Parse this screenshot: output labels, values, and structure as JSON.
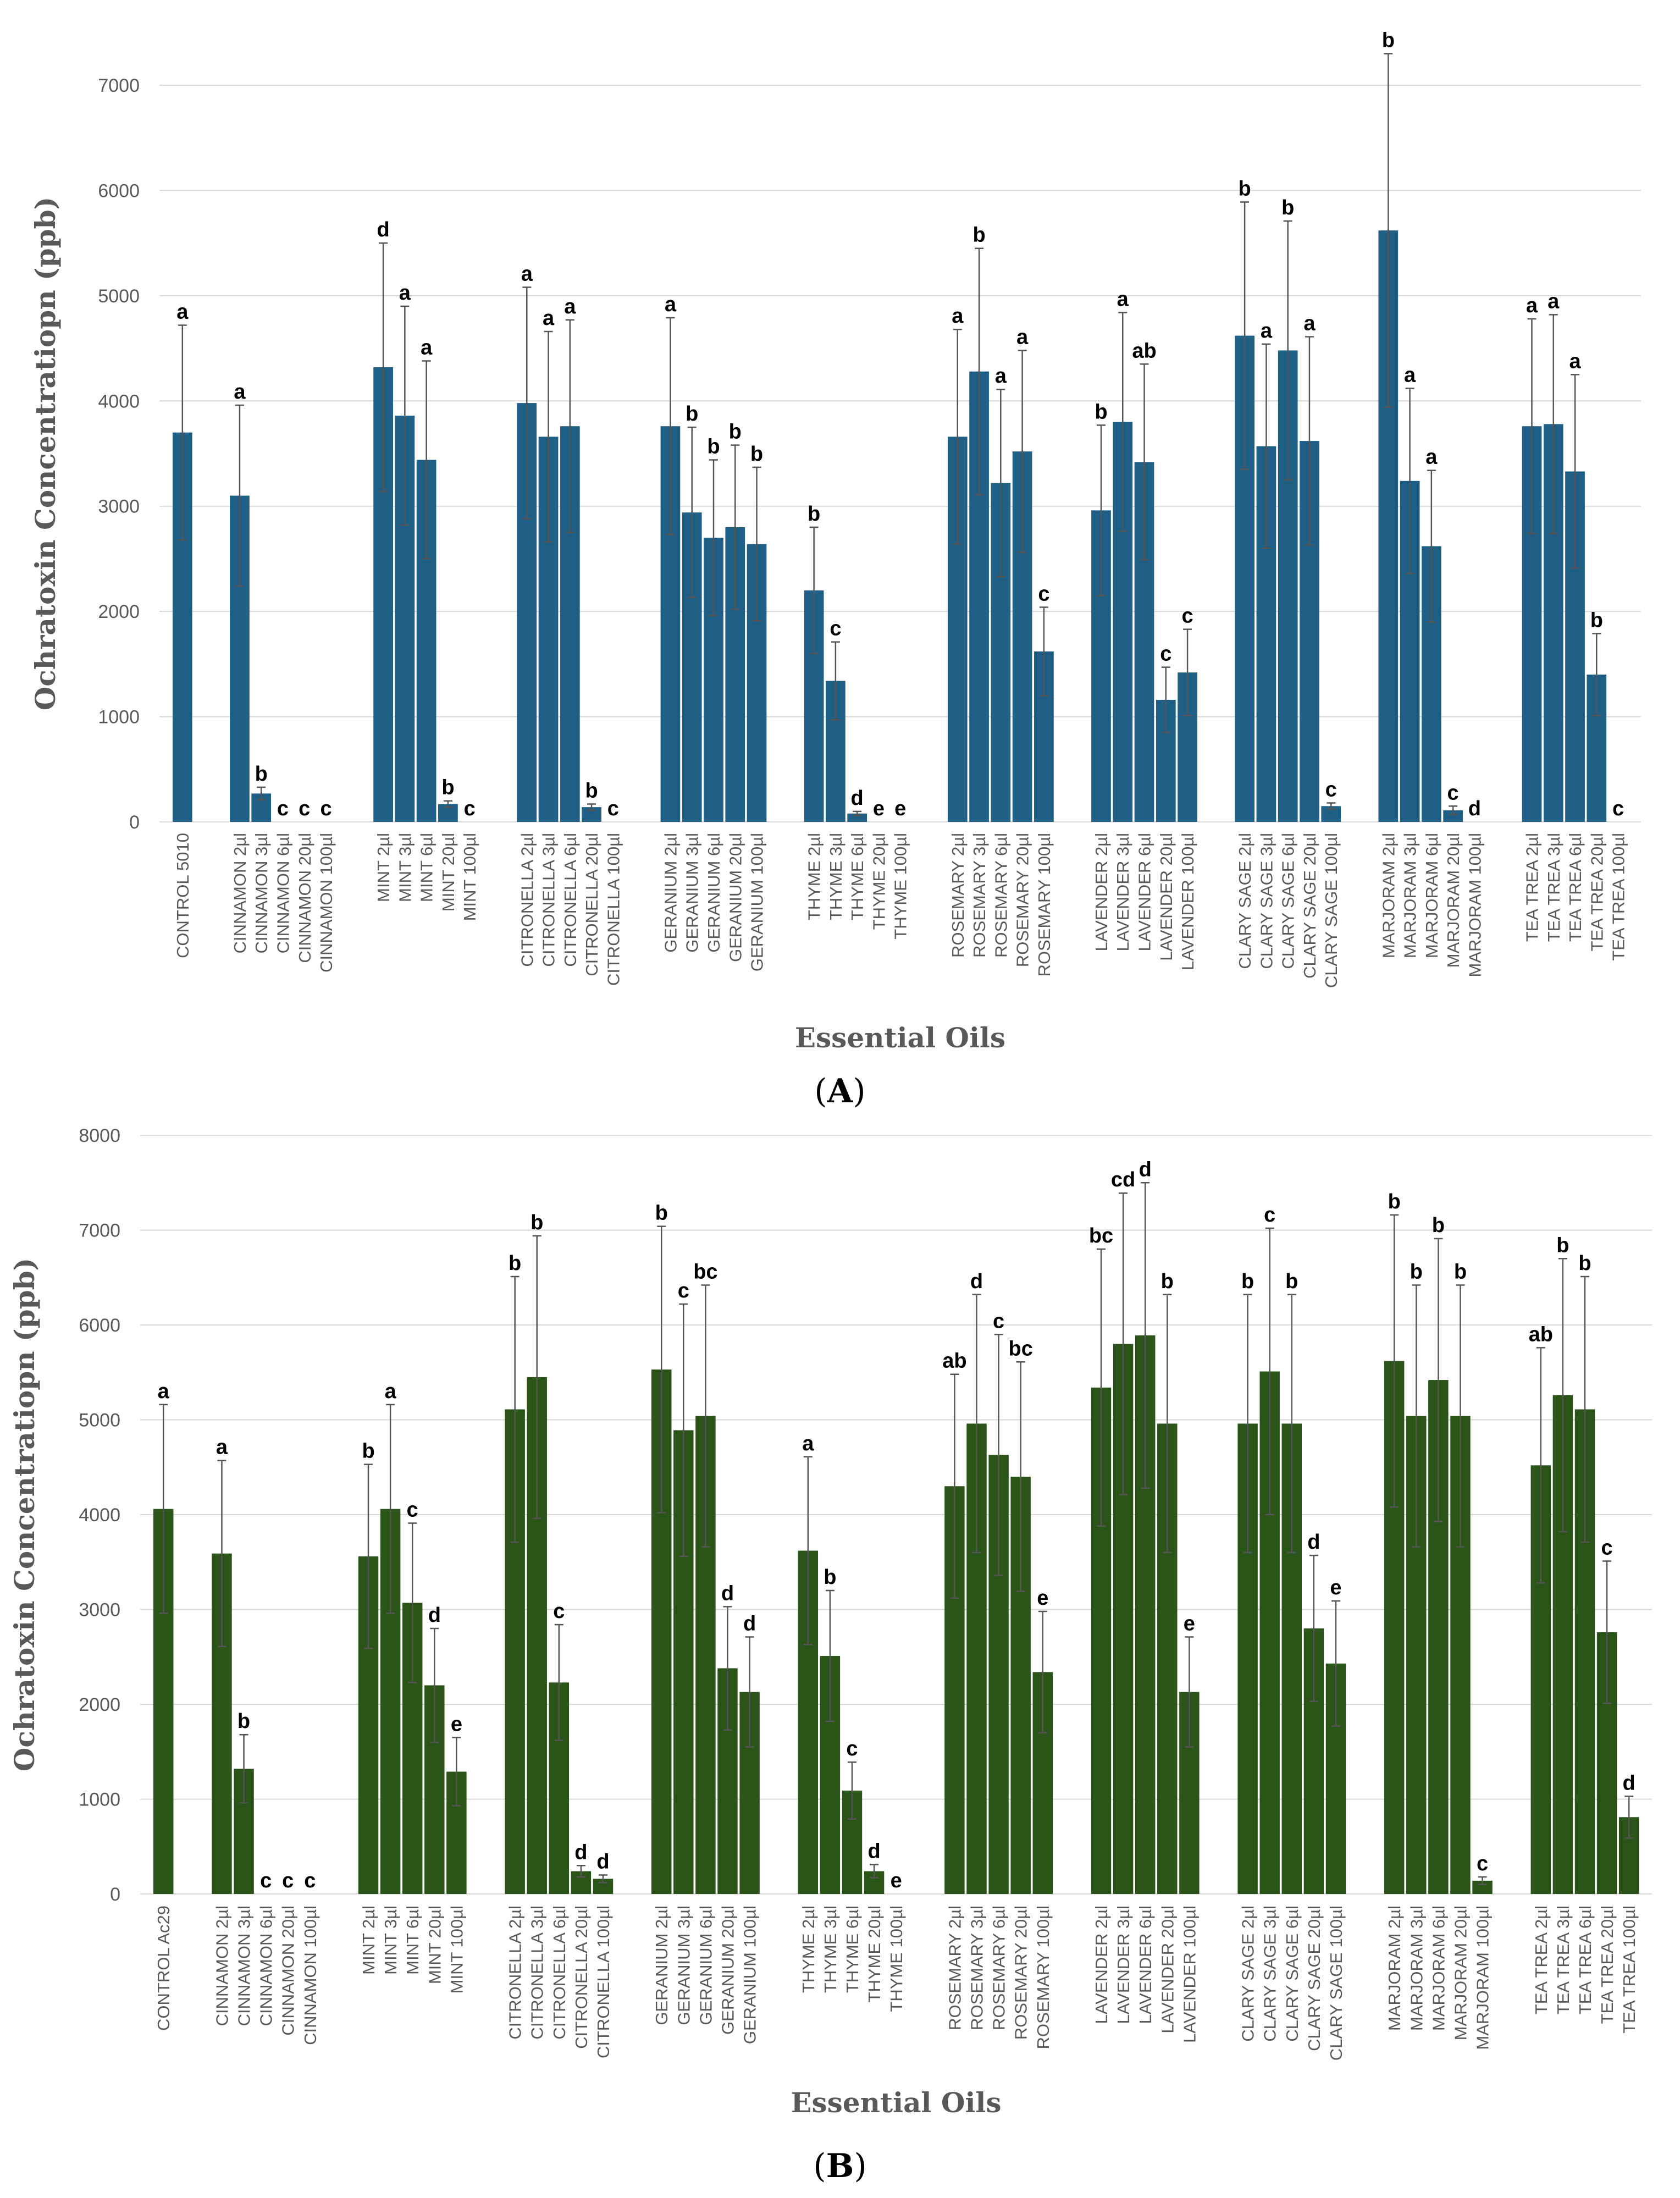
{
  "figure": {
    "label_A": "A",
    "label_B": "B"
  },
  "chart_data": [
    {
      "type": "bar",
      "panel": "A",
      "xlabel": "Essential Oils",
      "ylabel": "Ochratoxin Concentratiopn (ppb)",
      "ylim": [
        0,
        7000
      ],
      "yticks": [
        0,
        1000,
        2000,
        3000,
        4000,
        5000,
        6000,
        7000
      ],
      "grid": true,
      "bar_color": "#1f5f86",
      "groups": [
        {
          "name": "CONTROL",
          "bars": [
            {
              "label": "CONTROL 5010",
              "value": 3700,
              "error": 1020,
              "letter": "a"
            }
          ]
        },
        {
          "name": "CINNAMON",
          "bars": [
            {
              "label": "CINNAMON 2µl",
              "value": 3100,
              "error": 860,
              "letter": "a"
            },
            {
              "label": "CINNAMON 3µl",
              "value": 270,
              "error": 60,
              "letter": "b"
            },
            {
              "label": "CINNAMON 6µl",
              "value": 0,
              "error": 0,
              "letter": "c"
            },
            {
              "label": "CINNAMON 20µl",
              "value": 0,
              "error": 0,
              "letter": "c"
            },
            {
              "label": "CINNAMON 100µl",
              "value": 0,
              "error": 0,
              "letter": "c"
            }
          ]
        },
        {
          "name": "MINT",
          "bars": [
            {
              "label": "MINT 2µl",
              "value": 4320,
              "error": 1180,
              "letter": "d"
            },
            {
              "label": "MINT 3µl",
              "value": 3860,
              "error": 1040,
              "letter": "a"
            },
            {
              "label": "MINT 6µl",
              "value": 3440,
              "error": 940,
              "letter": "a"
            },
            {
              "label": "MINT 20µl",
              "value": 170,
              "error": 30,
              "letter": "b"
            },
            {
              "label": "MINT 100µl",
              "value": 0,
              "error": 0,
              "letter": "c"
            }
          ]
        },
        {
          "name": "CITRONELLA",
          "bars": [
            {
              "label": "CITRONELLA 2µl",
              "value": 3980,
              "error": 1100,
              "letter": "a"
            },
            {
              "label": "CITRONELLA 3µl",
              "value": 3660,
              "error": 1000,
              "letter": "a"
            },
            {
              "label": "CITRONELLA 6µl",
              "value": 3760,
              "error": 1010,
              "letter": "a"
            },
            {
              "label": "CITRONELLA 20µl",
              "value": 140,
              "error": 30,
              "letter": "b"
            },
            {
              "label": "CITRONELLA 100µl",
              "value": 0,
              "error": 0,
              "letter": "c"
            }
          ]
        },
        {
          "name": "GERANIUM",
          "bars": [
            {
              "label": "GERANIUM 2µl",
              "value": 3760,
              "error": 1030,
              "letter": "a"
            },
            {
              "label": "GERANIUM 3µl",
              "value": 2940,
              "error": 810,
              "letter": "b"
            },
            {
              "label": "GERANIUM 6µl",
              "value": 2700,
              "error": 740,
              "letter": "b"
            },
            {
              "label": "GERANIUM 20µl",
              "value": 2800,
              "error": 780,
              "letter": "b"
            },
            {
              "label": "GERANIUM 100µl",
              "value": 2640,
              "error": 730,
              "letter": "b"
            }
          ]
        },
        {
          "name": "THYME",
          "bars": [
            {
              "label": "THYME 2µl",
              "value": 2200,
              "error": 600,
              "letter": "b"
            },
            {
              "label": "THYME 3µl",
              "value": 1340,
              "error": 370,
              "letter": "c"
            },
            {
              "label": "THYME 6µl",
              "value": 80,
              "error": 20,
              "letter": "d"
            },
            {
              "label": "THYME 20µl",
              "value": 0,
              "error": 0,
              "letter": "e"
            },
            {
              "label": "THYME 100µl",
              "value": 0,
              "error": 0,
              "letter": "e"
            }
          ]
        },
        {
          "name": "ROSEMARY",
          "bars": [
            {
              "label": "ROSEMARY 2µl",
              "value": 3660,
              "error": 1020,
              "letter": "a"
            },
            {
              "label": "ROSEMARY 3µl",
              "value": 4280,
              "error": 1170,
              "letter": "b"
            },
            {
              "label": "ROSEMARY 6µl",
              "value": 3220,
              "error": 890,
              "letter": "a"
            },
            {
              "label": "ROSEMARY 20µl",
              "value": 3520,
              "error": 960,
              "letter": "a"
            },
            {
              "label": "ROSEMARY 100µl",
              "value": 1620,
              "error": 420,
              "letter": "c"
            }
          ]
        },
        {
          "name": "LAVENDER",
          "bars": [
            {
              "label": "LAVENDER 2µl",
              "value": 2960,
              "error": 810,
              "letter": "b"
            },
            {
              "label": "LAVENDER 3µl",
              "value": 3800,
              "error": 1040,
              "letter": "a"
            },
            {
              "label": "LAVENDER 6µl",
              "value": 3420,
              "error": 930,
              "letter": "ab"
            },
            {
              "label": "LAVENDER 20µl",
              "value": 1160,
              "error": 310,
              "letter": "c"
            },
            {
              "label": "LAVENDER 100µl",
              "value": 1420,
              "error": 410,
              "letter": "c"
            }
          ]
        },
        {
          "name": "CLARY SAGE",
          "bars": [
            {
              "label": "CLARY SAGE 2µl",
              "value": 4620,
              "error": 1270,
              "letter": "b"
            },
            {
              "label": "CLARY SAGE 3µl",
              "value": 3570,
              "error": 970,
              "letter": "a"
            },
            {
              "label": "CLARY SAGE 6µl",
              "value": 4480,
              "error": 1230,
              "letter": "b"
            },
            {
              "label": "CLARY SAGE 20µl",
              "value": 3620,
              "error": 990,
              "letter": "a"
            },
            {
              "label": "CLARY SAGE 100µl",
              "value": 150,
              "error": 30,
              "letter": "c"
            }
          ]
        },
        {
          "name": "MARJORAM",
          "bars": [
            {
              "label": "MARJORAM 2µl",
              "value": 5620,
              "error": 1680,
              "letter": "b"
            },
            {
              "label": "MARJORAM 3µl",
              "value": 3240,
              "error": 880,
              "letter": "a"
            },
            {
              "label": "MARJORAM 6µl",
              "value": 2620,
              "error": 720,
              "letter": "a"
            },
            {
              "label": "MARJORAM 20µl",
              "value": 110,
              "error": 40,
              "letter": "c"
            },
            {
              "label": "MARJORAM 100µl",
              "value": 0,
              "error": 0,
              "letter": "d"
            }
          ]
        },
        {
          "name": "TEA TREA",
          "bars": [
            {
              "label": "TEA TREA 2µl",
              "value": 3760,
              "error": 1020,
              "letter": "a"
            },
            {
              "label": "TEA TREA 3µl",
              "value": 3780,
              "error": 1040,
              "letter": "a"
            },
            {
              "label": "TEA TREA 6µl",
              "value": 3330,
              "error": 920,
              "letter": "a"
            },
            {
              "label": "TEA TREA 20µl",
              "value": 1400,
              "error": 390,
              "letter": "b"
            },
            {
              "label": "TEA TREA 100µl",
              "value": 0,
              "error": 0,
              "letter": "c"
            }
          ]
        }
      ]
    },
    {
      "type": "bar",
      "panel": "B",
      "xlabel": "Essential Oils",
      "ylabel": "Ochratoxin Concentratiopn (ppb)",
      "ylim": [
        0,
        8000
      ],
      "yticks": [
        0,
        1000,
        2000,
        3000,
        4000,
        5000,
        6000,
        7000,
        8000
      ],
      "grid": true,
      "bar_color": "#2b5419",
      "groups": [
        {
          "name": "CONTROL",
          "bars": [
            {
              "label": "CONTROL Ac29",
              "value": 4060,
              "error": 1100,
              "letter": "a"
            }
          ]
        },
        {
          "name": "CINNAMON",
          "bars": [
            {
              "label": "CINNAMON 2µl",
              "value": 3590,
              "error": 980,
              "letter": "a"
            },
            {
              "label": "CINNAMON 3µl",
              "value": 1320,
              "error": 360,
              "letter": "b"
            },
            {
              "label": "CINNAMON 6µl",
              "value": 0,
              "error": 0,
              "letter": "c"
            },
            {
              "label": "CINNAMON 20µl",
              "value": 0,
              "error": 0,
              "letter": "c"
            },
            {
              "label": "CINNAMON 100µl",
              "value": 0,
              "error": 0,
              "letter": "c"
            }
          ]
        },
        {
          "name": "MINT",
          "bars": [
            {
              "label": "MINT 2µl",
              "value": 3560,
              "error": 970,
              "letter": "b"
            },
            {
              "label": "MINT 3µl",
              "value": 4060,
              "error": 1100,
              "letter": "a"
            },
            {
              "label": "MINT 6µl",
              "value": 3070,
              "error": 840,
              "letter": "c"
            },
            {
              "label": "MINT 20µl",
              "value": 2200,
              "error": 600,
              "letter": "d"
            },
            {
              "label": "MINT 100µl",
              "value": 1290,
              "error": 360,
              "letter": "e"
            }
          ]
        },
        {
          "name": "CITRONELLA",
          "bars": [
            {
              "label": "CITRONELLA 2µl",
              "value": 5110,
              "error": 1400,
              "letter": "b"
            },
            {
              "label": "CITRONELLA 3µl",
              "value": 5450,
              "error": 1490,
              "letter": "b"
            },
            {
              "label": "CITRONELLA 6µl",
              "value": 2230,
              "error": 610,
              "letter": "c"
            },
            {
              "label": "CITRONELLA 20µl",
              "value": 240,
              "error": 60,
              "letter": "d"
            },
            {
              "label": "CITRONELLA 100µl",
              "value": 160,
              "error": 40,
              "letter": "d"
            }
          ]
        },
        {
          "name": "GERANIUM",
          "bars": [
            {
              "label": "GERANIUM 2µl",
              "value": 5530,
              "error": 1510,
              "letter": "b"
            },
            {
              "label": "GERANIUM 3µl",
              "value": 4890,
              "error": 1330,
              "letter": "c"
            },
            {
              "label": "GERANIUM 6µl",
              "value": 5040,
              "error": 1380,
              "letter": "bc"
            },
            {
              "label": "GERANIUM 20µl",
              "value": 2380,
              "error": 650,
              "letter": "d"
            },
            {
              "label": "GERANIUM 100µl",
              "value": 2130,
              "error": 580,
              "letter": "d"
            }
          ]
        },
        {
          "name": "THYME",
          "bars": [
            {
              "label": "THYME 2µl",
              "value": 3620,
              "error": 990,
              "letter": "a"
            },
            {
              "label": "THYME 3µl",
              "value": 2510,
              "error": 690,
              "letter": "b"
            },
            {
              "label": "THYME 6µl",
              "value": 1090,
              "error": 300,
              "letter": "c"
            },
            {
              "label": "THYME 20µl",
              "value": 240,
              "error": 70,
              "letter": "d"
            },
            {
              "label": "THYME 100µl",
              "value": 0,
              "error": 0,
              "letter": "e"
            }
          ]
        },
        {
          "name": "ROSEMARY",
          "bars": [
            {
              "label": "ROSEMARY 2µl",
              "value": 4300,
              "error": 1180,
              "letter": "ab"
            },
            {
              "label": "ROSEMARY 3µl",
              "value": 4960,
              "error": 1360,
              "letter": "d"
            },
            {
              "label": "ROSEMARY 6µl",
              "value": 4630,
              "error": 1270,
              "letter": "c"
            },
            {
              "label": "ROSEMARY 20µl",
              "value": 4400,
              "error": 1210,
              "letter": "bc"
            },
            {
              "label": "ROSEMARY 100µl",
              "value": 2340,
              "error": 640,
              "letter": "e"
            }
          ]
        },
        {
          "name": "LAVENDER",
          "bars": [
            {
              "label": "LAVENDER 2µl",
              "value": 5340,
              "error": 1460,
              "letter": "bc"
            },
            {
              "label": "LAVENDER 3µl",
              "value": 5800,
              "error": 1590,
              "letter": "cd"
            },
            {
              "label": "LAVENDER 6µl",
              "value": 5890,
              "error": 1610,
              "letter": "d"
            },
            {
              "label": "LAVENDER 20µl",
              "value": 4960,
              "error": 1360,
              "letter": "b"
            },
            {
              "label": "LAVENDER 100µl",
              "value": 2130,
              "error": 580,
              "letter": "e"
            }
          ]
        },
        {
          "name": "CLARY SAGE",
          "bars": [
            {
              "label": "CLARY SAGE 2µl",
              "value": 4960,
              "error": 1360,
              "letter": "b"
            },
            {
              "label": "CLARY SAGE 3µl",
              "value": 5510,
              "error": 1510,
              "letter": "c"
            },
            {
              "label": "CLARY SAGE 6µl",
              "value": 4960,
              "error": 1360,
              "letter": "b"
            },
            {
              "label": "CLARY SAGE 20µl",
              "value": 2800,
              "error": 770,
              "letter": "d"
            },
            {
              "label": "CLARY SAGE 100µl",
              "value": 2430,
              "error": 660,
              "letter": "e"
            }
          ]
        },
        {
          "name": "MARJORAM",
          "bars": [
            {
              "label": "MARJORAM 2µl",
              "value": 5620,
              "error": 1540,
              "letter": "b"
            },
            {
              "label": "MARJORAM 3µl",
              "value": 5040,
              "error": 1380,
              "letter": "b"
            },
            {
              "label": "MARJORAM 6µl",
              "value": 5420,
              "error": 1490,
              "letter": "b"
            },
            {
              "label": "MARJORAM 20µl",
              "value": 5040,
              "error": 1380,
              "letter": "b"
            },
            {
              "label": "MARJORAM 100µl",
              "value": 140,
              "error": 40,
              "letter": "c"
            }
          ]
        },
        {
          "name": "TEA TREA",
          "bars": [
            {
              "label": "TEA TREA 2µl",
              "value": 4520,
              "error": 1240,
              "letter": "ab"
            },
            {
              "label": "TEA TREA 3µl",
              "value": 5260,
              "error": 1440,
              "letter": "b"
            },
            {
              "label": "TEA TREA 6µl",
              "value": 5110,
              "error": 1400,
              "letter": "b"
            },
            {
              "label": "TEA TREA 20µl",
              "value": 2760,
              "error": 750,
              "letter": "c"
            },
            {
              "label": "TEA TREA 100µl",
              "value": 810,
              "error": 220,
              "letter": "d"
            }
          ]
        }
      ]
    }
  ]
}
